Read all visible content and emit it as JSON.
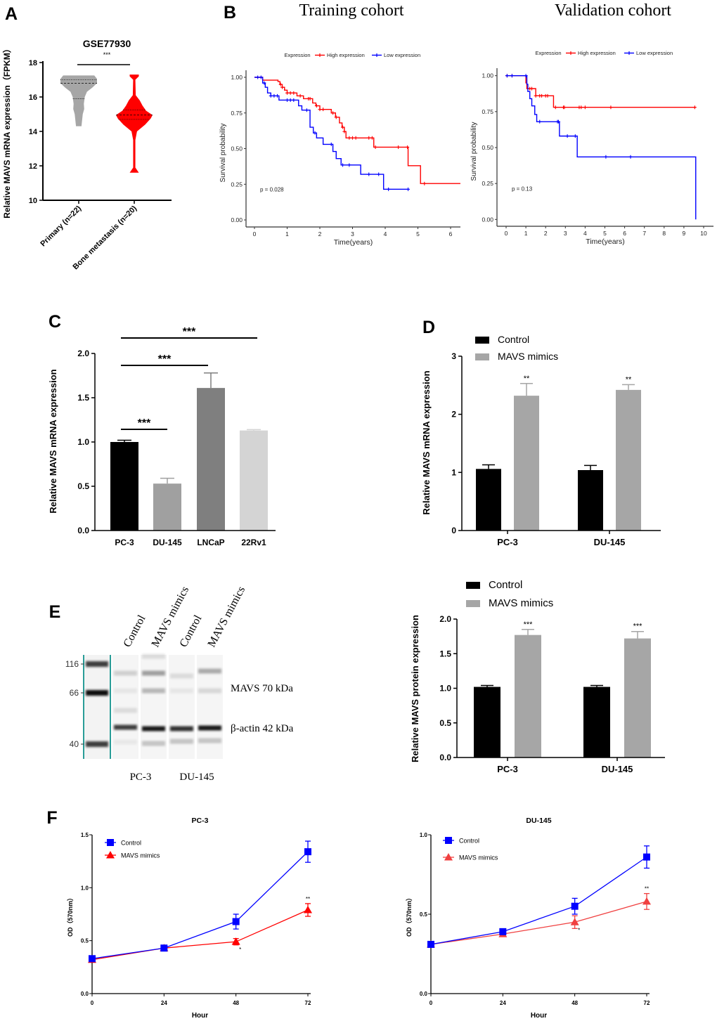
{
  "figure": {
    "panel_labels": [
      "A",
      "B",
      "C",
      "D",
      "E",
      "F"
    ]
  },
  "colors": {
    "red": "#ff0000",
    "blue": "#0000ff",
    "grey": "#a6a6a6",
    "black": "#000000",
    "light_red": "#f04040",
    "blot_teal": "#2a9d98"
  },
  "chart_data": [
    {
      "type": "violin",
      "title": "GSE77930",
      "ylabel": "Relative MAVS mRNA expression（FPKM）",
      "ylim": [
        10,
        18
      ],
      "yticks": [
        "10",
        "12",
        "14",
        "16",
        "18"
      ],
      "categories": [
        "Primary (n=22)",
        "Bone metastasis (n=20)"
      ],
      "significance": "***",
      "violins": [
        {
          "color": "#a6a6a6",
          "min": 14.3,
          "max": 17.25,
          "median": 16.8,
          "q1": 15.9,
          "q3": 17.0,
          "profile": [
            [
              14.3,
              0.15
            ],
            [
              14.6,
              0.18
            ],
            [
              15.0,
              0.22
            ],
            [
              15.3,
              0.3
            ],
            [
              15.6,
              0.28
            ],
            [
              16.0,
              0.33
            ],
            [
              16.3,
              0.45
            ],
            [
              16.55,
              0.75
            ],
            [
              16.8,
              1.0
            ],
            [
              17.05,
              1.0
            ],
            [
              17.25,
              0.85
            ]
          ]
        },
        {
          "color": "#ff0000",
          "min": 11.6,
          "max": 17.3,
          "median": 14.95,
          "q1": 14.7,
          "q3": 15.25,
          "profile": [
            [
              11.6,
              0.25
            ],
            [
              11.9,
              0.06
            ],
            [
              13.5,
              0.06
            ],
            [
              14.0,
              0.15
            ],
            [
              14.4,
              0.6
            ],
            [
              14.75,
              0.9
            ],
            [
              14.95,
              1.0
            ],
            [
              15.2,
              0.65
            ],
            [
              15.5,
              0.45
            ],
            [
              15.8,
              0.3
            ],
            [
              16.1,
              0.08
            ],
            [
              17.0,
              0.06
            ],
            [
              17.2,
              0.25
            ],
            [
              17.3,
              0.25
            ]
          ]
        }
      ]
    },
    {
      "type": "line",
      "subtype": "kaplan-meier",
      "title": "Training cohort",
      "xlabel": "Time(years)",
      "ylabel": "Survival probability",
      "xlim": [
        0,
        6.3
      ],
      "ylim": [
        0,
        1
      ],
      "xticks": [
        "0",
        "1",
        "2",
        "3",
        "4",
        "5",
        "6"
      ],
      "yticks": [
        "0.00",
        "0.25",
        "0.50",
        "0.75",
        "1.00"
      ],
      "legend_title": "Expression",
      "legend_position": "top",
      "p_value": "p = 0.028",
      "series": [
        {
          "name": "High expression",
          "color": "#ff0000",
          "end_time": 6.3,
          "steps": [
            [
              0,
              1
            ],
            [
              0.25,
              0.98
            ],
            [
              0.72,
              0.97
            ],
            [
              0.78,
              0.95
            ],
            [
              0.85,
              0.93
            ],
            [
              0.92,
              0.91
            ],
            [
              1.0,
              0.89
            ],
            [
              1.3,
              0.87
            ],
            [
              1.5,
              0.85
            ],
            [
              1.78,
              0.82
            ],
            [
              1.88,
              0.8
            ],
            [
              2.0,
              0.775
            ],
            [
              2.35,
              0.75
            ],
            [
              2.48,
              0.72
            ],
            [
              2.6,
              0.68
            ],
            [
              2.68,
              0.65
            ],
            [
              2.75,
              0.62
            ],
            [
              2.8,
              0.575
            ],
            [
              3.65,
              0.51
            ],
            [
              4.7,
              0.38
            ],
            [
              5.08,
              0.255
            ]
          ],
          "censored": [
            0.8,
            0.85,
            1.0,
            1.1,
            1.2,
            1.4,
            1.65,
            1.7,
            1.9,
            2.0,
            2.1,
            2.4,
            2.5,
            2.7,
            2.75,
            2.9,
            3.0,
            3.1,
            3.5,
            3.6,
            3.7,
            4.4,
            4.68,
            5.2
          ]
        },
        {
          "name": "Low expression",
          "color": "#0000ff",
          "end_time": 4.72,
          "steps": [
            [
              0,
              1
            ],
            [
              0.25,
              0.96
            ],
            [
              0.33,
              0.93
            ],
            [
              0.4,
              0.89
            ],
            [
              0.5,
              0.87
            ],
            [
              0.75,
              0.84
            ],
            [
              1.35,
              0.8
            ],
            [
              1.45,
              0.77
            ],
            [
              1.7,
              0.65
            ],
            [
              1.8,
              0.61
            ],
            [
              1.9,
              0.575
            ],
            [
              2.1,
              0.53
            ],
            [
              2.4,
              0.48
            ],
            [
              2.5,
              0.43
            ],
            [
              2.65,
              0.385
            ],
            [
              3.25,
              0.32
            ],
            [
              3.95,
              0.215
            ]
          ],
          "censored": [
            0.1,
            0.2,
            0.3,
            0.5,
            0.6,
            0.7,
            1.0,
            1.1,
            1.2,
            1.6,
            1.85,
            2.35,
            2.7,
            2.9,
            3.5,
            3.8,
            4.1,
            4.7
          ]
        }
      ]
    },
    {
      "type": "line",
      "subtype": "kaplan-meier",
      "title": "Validation cohort",
      "xlabel": "Time(years)",
      "ylabel": "Survival probability",
      "xlim": [
        0,
        10.5
      ],
      "ylim": [
        0,
        1
      ],
      "xticks": [
        "0",
        "1",
        "2",
        "3",
        "4",
        "5",
        "6",
        "7",
        "8",
        "9",
        "10"
      ],
      "yticks": [
        "0.00",
        "0.25",
        "0.50",
        "0.75",
        "1.00"
      ],
      "legend_title": "Expression",
      "legend_position": "top",
      "p_value": "p = 0.13",
      "series": [
        {
          "name": "High expression",
          "color": "#ff0000",
          "end_time": 9.6,
          "steps": [
            [
              0,
              1
            ],
            [
              1.0,
              0.95
            ],
            [
              1.05,
              0.91
            ],
            [
              1.5,
              0.86
            ],
            [
              2.4,
              0.78
            ]
          ],
          "censored": [
            0.05,
            0.3,
            1.2,
            1.3,
            1.5,
            1.7,
            1.8,
            2.0,
            2.1,
            2.5,
            2.9,
            2.95,
            3.7,
            3.8,
            4.0,
            5.3,
            9.55
          ]
        },
        {
          "name": "Low expression",
          "color": "#0000ff",
          "end_time": 9.6,
          "steps": [
            [
              0,
              1
            ],
            [
              1.05,
              0.94
            ],
            [
              1.1,
              0.89
            ],
            [
              1.2,
              0.84
            ],
            [
              1.3,
              0.79
            ],
            [
              1.45,
              0.73
            ],
            [
              1.55,
              0.68
            ],
            [
              2.7,
              0.58
            ],
            [
              3.6,
              0.435
            ],
            [
              9.6,
              0.0
            ]
          ],
          "censored": [
            0.05,
            0.3,
            1.0,
            1.7,
            2.6,
            2.65,
            3.1,
            3.5,
            5.05,
            6.3
          ]
        }
      ]
    },
    {
      "type": "bar",
      "ylabel": "Relative MAVS mRNA expression",
      "ylim": [
        0,
        2.0
      ],
      "yticks": [
        "0.0",
        "0.5",
        "1.0",
        "1.5",
        "2.0"
      ],
      "categories": [
        "PC-3",
        "DU-145",
        "LNCaP",
        "22Rv1"
      ],
      "values": [
        1.0,
        0.53,
        1.61,
        1.13
      ],
      "errors": [
        0.02,
        0.06,
        0.17,
        0.01
      ],
      "bar_colors": [
        "#000000",
        "#a0a0a0",
        "#7f7f7f",
        "#d4d4d4"
      ],
      "comparisons": [
        {
          "from": "PC-3",
          "to": "DU-145",
          "label": "***"
        },
        {
          "from": "PC-3",
          "to": "LNCaP",
          "label": "***"
        },
        {
          "from": "PC-3",
          "to": "22Rv1",
          "label": "***"
        }
      ]
    },
    {
      "type": "bar",
      "ylabel": "Relative MAVS mRNA expression",
      "ylim": [
        0,
        3
      ],
      "yticks": [
        "0",
        "1",
        "2",
        "3"
      ],
      "categories": [
        "PC-3",
        "DU-145"
      ],
      "legend_position": "top-left",
      "series": [
        {
          "name": "Control",
          "color": "#000000",
          "values": [
            1.06,
            1.04
          ],
          "errors": [
            0.07,
            0.08
          ],
          "labels": [
            "",
            ""
          ]
        },
        {
          "name": "MAVS mimics",
          "color": "#a6a6a6",
          "values": [
            2.32,
            2.42
          ],
          "errors": [
            0.21,
            0.09
          ],
          "labels": [
            "**",
            "**"
          ]
        }
      ]
    },
    {
      "type": "bar",
      "ylabel": "Relative MAVS protein expression",
      "ylim": [
        0,
        2.0
      ],
      "yticks": [
        "0.0",
        "0.5",
        "1.0",
        "1.5",
        "2.0"
      ],
      "categories": [
        "PC-3",
        "DU-145"
      ],
      "legend_position": "top-left",
      "series": [
        {
          "name": "Control",
          "color": "#000000",
          "values": [
            1.02,
            1.02
          ],
          "errors": [
            0.02,
            0.02
          ],
          "labels": [
            "",
            ""
          ]
        },
        {
          "name": "MAVS mimics",
          "color": "#a6a6a6",
          "values": [
            1.77,
            1.72
          ],
          "errors": [
            0.08,
            0.1
          ],
          "labels": [
            "***",
            "***"
          ]
        }
      ]
    },
    {
      "type": "line",
      "title": "PC-3",
      "xlabel": "Hour",
      "ylabel": "OD（570nm）",
      "x": [
        0,
        24,
        48,
        72
      ],
      "xticks": [
        "0",
        "24",
        "48",
        "72"
      ],
      "ylim": [
        0,
        1.5
      ],
      "yticks": [
        "0.0",
        "0.5",
        "1.0",
        "1.5"
      ],
      "legend_position": "top-left",
      "series": [
        {
          "name": "Control",
          "color": "#0000ff",
          "marker": "square",
          "values": [
            0.33,
            0.43,
            0.68,
            1.34
          ],
          "errors": [
            0.01,
            0.01,
            0.07,
            0.1
          ],
          "labels": [
            "",
            "",
            "",
            ""
          ]
        },
        {
          "name": "MAVS mimics",
          "color": "#ff0000",
          "marker": "triangle",
          "values": [
            0.32,
            0.43,
            0.49,
            0.79
          ],
          "errors": [
            0.01,
            0.01,
            0.03,
            0.06
          ],
          "labels": [
            "",
            "",
            "*",
            "**"
          ]
        }
      ]
    },
    {
      "type": "line",
      "title": "DU-145",
      "xlabel": "Hour",
      "ylabel": "OD（570nm）",
      "x": [
        0,
        24,
        48,
        72
      ],
      "xticks": [
        "0",
        "24",
        "48",
        "72"
      ],
      "ylim": [
        0,
        1.0
      ],
      "yticks": [
        "0.0",
        "0.5",
        "1.0"
      ],
      "legend_position": "top-left",
      "series": [
        {
          "name": "Control",
          "color": "#0000ff",
          "marker": "square",
          "values": [
            0.31,
            0.39,
            0.55,
            0.86
          ],
          "errors": [
            0.01,
            0.01,
            0.05,
            0.07
          ],
          "labels": [
            "",
            "",
            "",
            ""
          ]
        },
        {
          "name": "MAVS mimics",
          "color": "#f04040",
          "marker": "triangle",
          "values": [
            0.31,
            0.375,
            0.45,
            0.58
          ],
          "errors": [
            0.01,
            0.01,
            0.04,
            0.05
          ],
          "labels": [
            "",
            "",
            "*",
            "**"
          ]
        }
      ]
    }
  ],
  "blot": {
    "lane_labels": [
      "Control",
      "MAVS mimics",
      "Control",
      "MAVS mimics"
    ],
    "ladder_labels": [
      "116",
      "66",
      "40"
    ],
    "band_labels": [
      "MAVS 70 kDa",
      "β-actin 42 kDa"
    ],
    "group_labels": [
      "PC-3",
      "DU-145"
    ]
  }
}
